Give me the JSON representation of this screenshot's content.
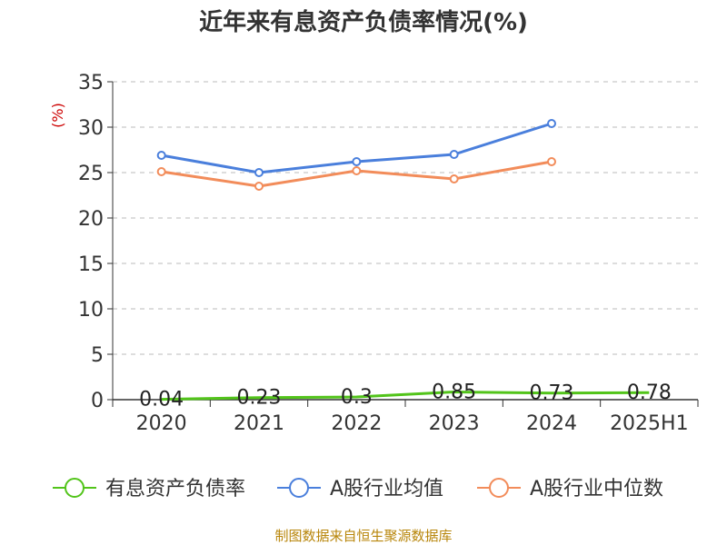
{
  "chart_data": {
    "type": "line",
    "title": "近年来有息资产负债率情况(%)",
    "ylabel": "(%)",
    "categories": [
      "2020",
      "2021",
      "2022",
      "2023",
      "2024",
      "2025H1"
    ],
    "ylim": [
      0,
      35
    ],
    "yticks": [
      "0",
      "5",
      "10",
      "15",
      "20",
      "25",
      "30",
      "35"
    ],
    "grid": true,
    "legend_position": "bottom",
    "series": [
      {
        "name": "有息资产负债率",
        "color": "#52c41a",
        "values": [
          0.04,
          0.23,
          0.3,
          0.85,
          0.73,
          0.78
        ],
        "labels": [
          "0.04",
          "0.23",
          "0.3",
          "0.85",
          "0.73",
          "0.78"
        ]
      },
      {
        "name": "A股行业均值",
        "color": "#4a7fdc",
        "values": [
          26.9,
          25.0,
          26.2,
          27.0,
          30.4,
          null
        ]
      },
      {
        "name": "A股行业中位数",
        "color": "#f28c5a",
        "values": [
          25.1,
          23.5,
          25.2,
          24.3,
          26.2,
          null
        ]
      }
    ],
    "source": "制图数据来自恒生聚源数据库"
  }
}
